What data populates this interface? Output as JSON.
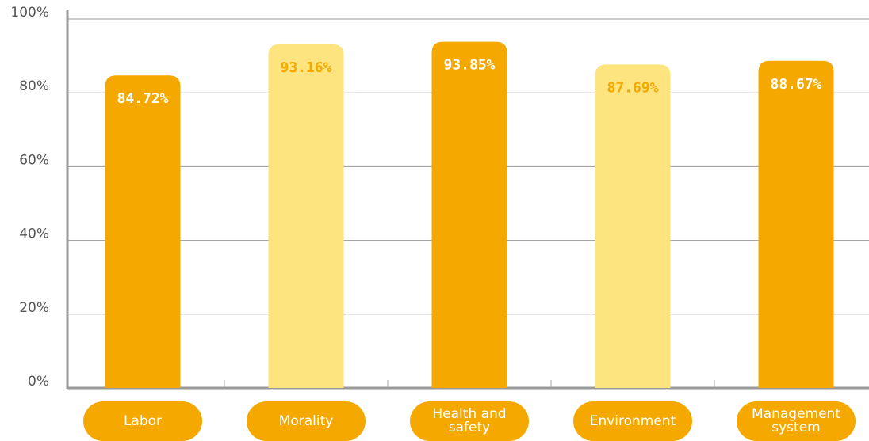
{
  "chart_data": {
    "type": "bar",
    "categories": [
      "Labor",
      "Morality",
      "Health and safety",
      "Environment",
      "Management system"
    ],
    "values": [
      84.72,
      93.16,
      93.85,
      87.69,
      88.67
    ],
    "value_labels": [
      "84.72%",
      "93.16%",
      "93.85%",
      "87.69%",
      "88.67%"
    ],
    "colors": [
      "#f5a800",
      "#fde47f",
      "#f5a800",
      "#fde47f",
      "#f5a800"
    ],
    "label_colors": [
      "#ffffff",
      "#f5a800",
      "#ffffff",
      "#f5a800",
      "#ffffff"
    ],
    "ylim": [
      0,
      100
    ],
    "yticks": [
      {
        "value": 0,
        "label": "0%"
      },
      {
        "value": 20,
        "label": "20%"
      },
      {
        "value": 40,
        "label": "40%"
      },
      {
        "value": 60,
        "label": "60%"
      },
      {
        "value": 80,
        "label": "80%"
      },
      {
        "value": 100,
        "label": "100%"
      }
    ],
    "grid": true
  }
}
